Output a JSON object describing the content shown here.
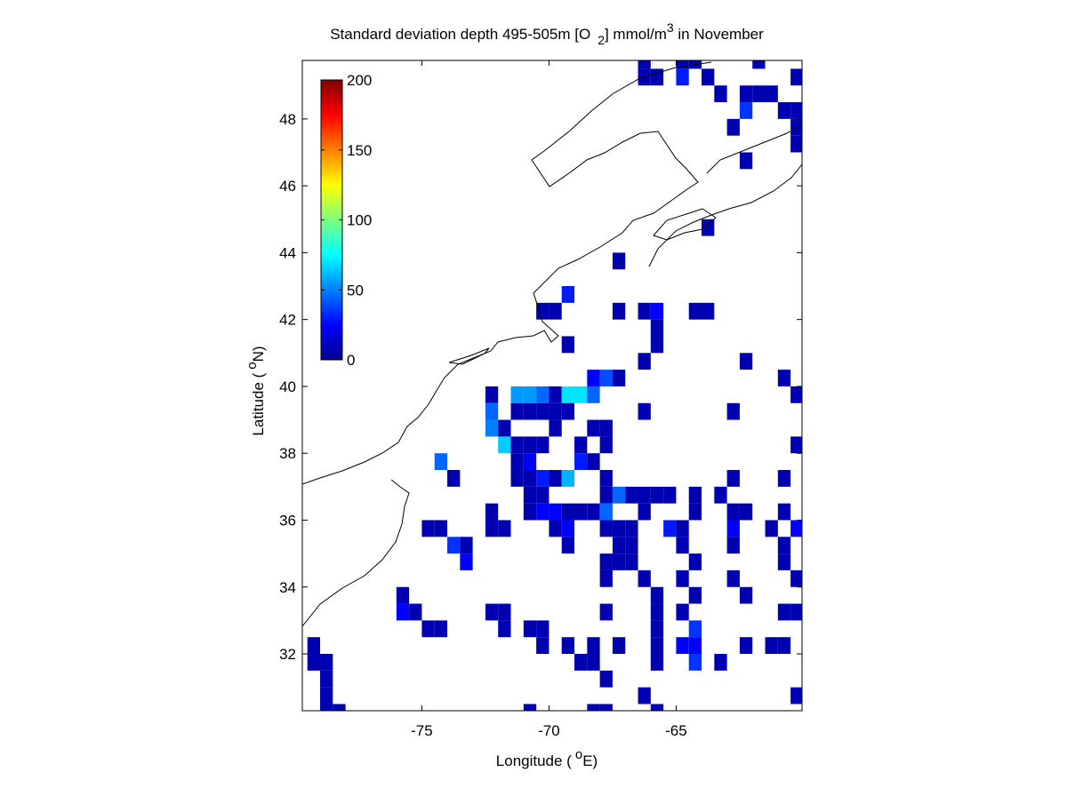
{
  "chart_data": {
    "type": "heatmap",
    "title": [
      "Standard deviation depth 495-505m [O",
      "2",
      "] mmol/m",
      "3",
      " in November"
    ],
    "xlabel": [
      "Longitude (",
      "o",
      "E)"
    ],
    "ylabel": [
      "Latitude (",
      "o",
      "N)"
    ],
    "xlim": [
      -79.7,
      -60.05
    ],
    "ylim": [
      30.3,
      49.75
    ],
    "xticks": [
      -75,
      -70,
      -65
    ],
    "yticks": [
      32,
      34,
      36,
      38,
      40,
      42,
      44,
      46,
      48
    ],
    "colormap": "jet",
    "clim": [
      0,
      200
    ],
    "colorbar_ticks": [
      0,
      50,
      100,
      150,
      200
    ],
    "x": [
      -66.25,
      -64.75,
      -64.25,
      -61.75,
      -66.25,
      -65.75,
      -64.75,
      -63.75,
      -60.25,
      -63.25,
      -62.25,
      -61.75,
      -61.25,
      -62.25,
      -60.75,
      -60.25,
      -62.75,
      -60.25,
      -60.25,
      -62.25,
      -63.75,
      -67.25,
      -69.25,
      -70.25,
      -69.75,
      -67.25,
      -66.25,
      -65.75,
      -64.25,
      -63.75,
      -65.75,
      -69.25,
      -65.75,
      -66.25,
      -62.25,
      -68.25,
      -67.75,
      -67.25,
      -60.75,
      -72.25,
      -71.25,
      -70.75,
      -70.25,
      -69.75,
      -69.25,
      -68.75,
      -68.25,
      -60.25,
      -72.25,
      -71.25,
      -70.75,
      -70.25,
      -69.75,
      -69.25,
      -66.25,
      -62.75,
      -72.25,
      -71.75,
      -69.75,
      -68.25,
      -67.75,
      -71.75,
      -71.25,
      -70.75,
      -70.25,
      -68.75,
      -67.75,
      -60.25,
      -74.25,
      -71.25,
      -70.75,
      -68.75,
      -68.25,
      -73.75,
      -71.25,
      -70.75,
      -70.25,
      -69.75,
      -69.25,
      -67.75,
      -62.75,
      -60.75,
      -70.75,
      -70.25,
      -67.75,
      -67.25,
      -66.75,
      -66.25,
      -65.75,
      -65.25,
      -64.25,
      -63.25,
      -72.25,
      -70.75,
      -70.25,
      -69.75,
      -69.25,
      -68.75,
      -68.25,
      -67.75,
      -66.25,
      -64.25,
      -62.75,
      -62.25,
      -60.75,
      -74.75,
      -74.25,
      -72.25,
      -71.75,
      -69.75,
      -69.25,
      -67.75,
      -67.25,
      -66.75,
      -65.25,
      -64.75,
      -62.75,
      -61.25,
      -60.25,
      -73.75,
      -73.25,
      -69.25,
      -67.25,
      -66.75,
      -64.75,
      -62.75,
      -60.75,
      -73.25,
      -67.75,
      -67.25,
      -66.75,
      -64.25,
      -60.75,
      -67.75,
      -66.25,
      -64.75,
      -62.75,
      -60.25,
      -75.75,
      -65.75,
      -64.25,
      -62.25,
      -75.75,
      -75.25,
      -72.25,
      -71.75,
      -67.75,
      -65.75,
      -64.75,
      -60.75,
      -60.25,
      -74.75,
      -74.25,
      -71.75,
      -70.75,
      -70.25,
      -65.75,
      -64.25,
      -79.25,
      -70.25,
      -69.25,
      -68.25,
      -67.25,
      -65.75,
      -64.75,
      -64.25,
      -62.25,
      -61.25,
      -60.75,
      -79.25,
      -78.75,
      -68.75,
      -68.25,
      -65.75,
      -64.25,
      -63.25,
      -78.75,
      -67.75,
      -78.75,
      -66.25,
      -60.25,
      -78.75,
      -78.25,
      -70.75,
      -68.25,
      -67.75,
      -65.75
    ],
    "y": [
      49.75,
      49.75,
      49.75,
      49.75,
      49.25,
      49.25,
      49.25,
      49.25,
      49.25,
      48.75,
      48.75,
      48.75,
      48.75,
      48.25,
      48.25,
      48.25,
      47.75,
      47.75,
      47.25,
      46.75,
      44.75,
      43.75,
      42.75,
      42.25,
      42.25,
      42.25,
      42.25,
      42.25,
      42.25,
      42.25,
      41.75,
      41.25,
      41.25,
      40.75,
      40.75,
      40.25,
      40.25,
      40.25,
      40.25,
      39.75,
      39.75,
      39.75,
      39.75,
      39.75,
      39.75,
      39.75,
      39.75,
      39.75,
      39.25,
      39.25,
      39.25,
      39.25,
      39.25,
      39.25,
      39.25,
      39.25,
      38.75,
      38.75,
      38.75,
      38.75,
      38.75,
      38.25,
      38.25,
      38.25,
      38.25,
      38.25,
      38.25,
      38.25,
      37.75,
      37.75,
      37.75,
      37.75,
      37.75,
      37.25,
      37.25,
      37.25,
      37.25,
      37.25,
      37.25,
      37.25,
      37.25,
      37.25,
      36.75,
      36.75,
      36.75,
      36.75,
      36.75,
      36.75,
      36.75,
      36.75,
      36.75,
      36.75,
      36.25,
      36.25,
      36.25,
      36.25,
      36.25,
      36.25,
      36.25,
      36.25,
      36.25,
      36.25,
      36.25,
      36.25,
      36.25,
      35.75,
      35.75,
      35.75,
      35.75,
      35.75,
      35.75,
      35.75,
      35.75,
      35.75,
      35.75,
      35.75,
      35.75,
      35.75,
      35.75,
      35.25,
      35.25,
      35.25,
      35.25,
      35.25,
      35.25,
      35.25,
      35.25,
      34.75,
      34.75,
      34.75,
      34.75,
      34.75,
      34.75,
      34.25,
      34.25,
      34.25,
      34.25,
      34.25,
      33.75,
      33.75,
      33.75,
      33.75,
      33.25,
      33.25,
      33.25,
      33.25,
      33.25,
      33.25,
      33.25,
      33.25,
      33.25,
      32.75,
      32.75,
      32.75,
      32.75,
      32.75,
      32.75,
      32.75,
      32.25,
      32.25,
      32.25,
      32.25,
      32.25,
      32.25,
      32.25,
      32.25,
      32.25,
      32.25,
      32.25,
      31.75,
      31.75,
      31.75,
      31.75,
      31.75,
      31.75,
      31.75,
      31.25,
      31.25,
      30.75,
      30.75,
      30.75,
      30.25,
      30.25,
      30.25,
      30.25,
      30.25,
      30.25
    ],
    "values": [
      10,
      10,
      10,
      10,
      10,
      10,
      30,
      10,
      10,
      10,
      10,
      10,
      10,
      35,
      10,
      10,
      10,
      10,
      10,
      10,
      10,
      10,
      30,
      10,
      10,
      10,
      10,
      25,
      10,
      10,
      10,
      10,
      10,
      10,
      10,
      25,
      40,
      10,
      10,
      10,
      55,
      55,
      45,
      10,
      70,
      70,
      45,
      10,
      45,
      10,
      10,
      10,
      10,
      10,
      10,
      10,
      50,
      10,
      10,
      10,
      10,
      65,
      10,
      10,
      10,
      10,
      10,
      10,
      45,
      10,
      25,
      30,
      10,
      10,
      10,
      10,
      30,
      10,
      60,
      10,
      10,
      10,
      10,
      10,
      10,
      45,
      10,
      10,
      10,
      10,
      10,
      10,
      10,
      10,
      25,
      25,
      10,
      10,
      10,
      45,
      10,
      10,
      10,
      10,
      10,
      10,
      10,
      10,
      10,
      10,
      25,
      10,
      10,
      10,
      30,
      10,
      25,
      10,
      25,
      35,
      10,
      10,
      10,
      10,
      10,
      10,
      10,
      25,
      10,
      10,
      10,
      10,
      10,
      10,
      10,
      10,
      10,
      10,
      10,
      10,
      10,
      10,
      25,
      10,
      10,
      10,
      10,
      10,
      10,
      10,
      10,
      10,
      10,
      10,
      10,
      10,
      10,
      35,
      10,
      10,
      10,
      10,
      10,
      10,
      25,
      25,
      10,
      10,
      10,
      10,
      10,
      10,
      10,
      10,
      35,
      10,
      10,
      10,
      10,
      10,
      10,
      10,
      10,
      10,
      10,
      10,
      10
    ]
  }
}
